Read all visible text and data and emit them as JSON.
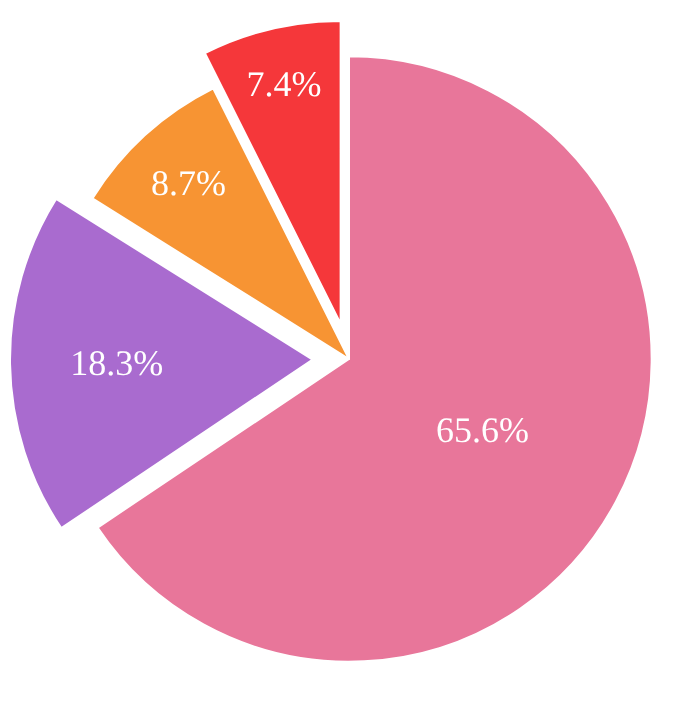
{
  "chart_data": {
    "type": "pie",
    "categories": [
      null,
      null,
      null,
      null
    ],
    "values": [
      65.6,
      18.3,
      8.7,
      7.4
    ],
    "colors": [
      "#e8769a",
      "#a96bcf",
      "#f79433",
      "#f5373a"
    ],
    "value_labels": [
      "65.6%",
      "18.3%",
      "8.7%",
      "7.4%"
    ],
    "legend": false
  }
}
